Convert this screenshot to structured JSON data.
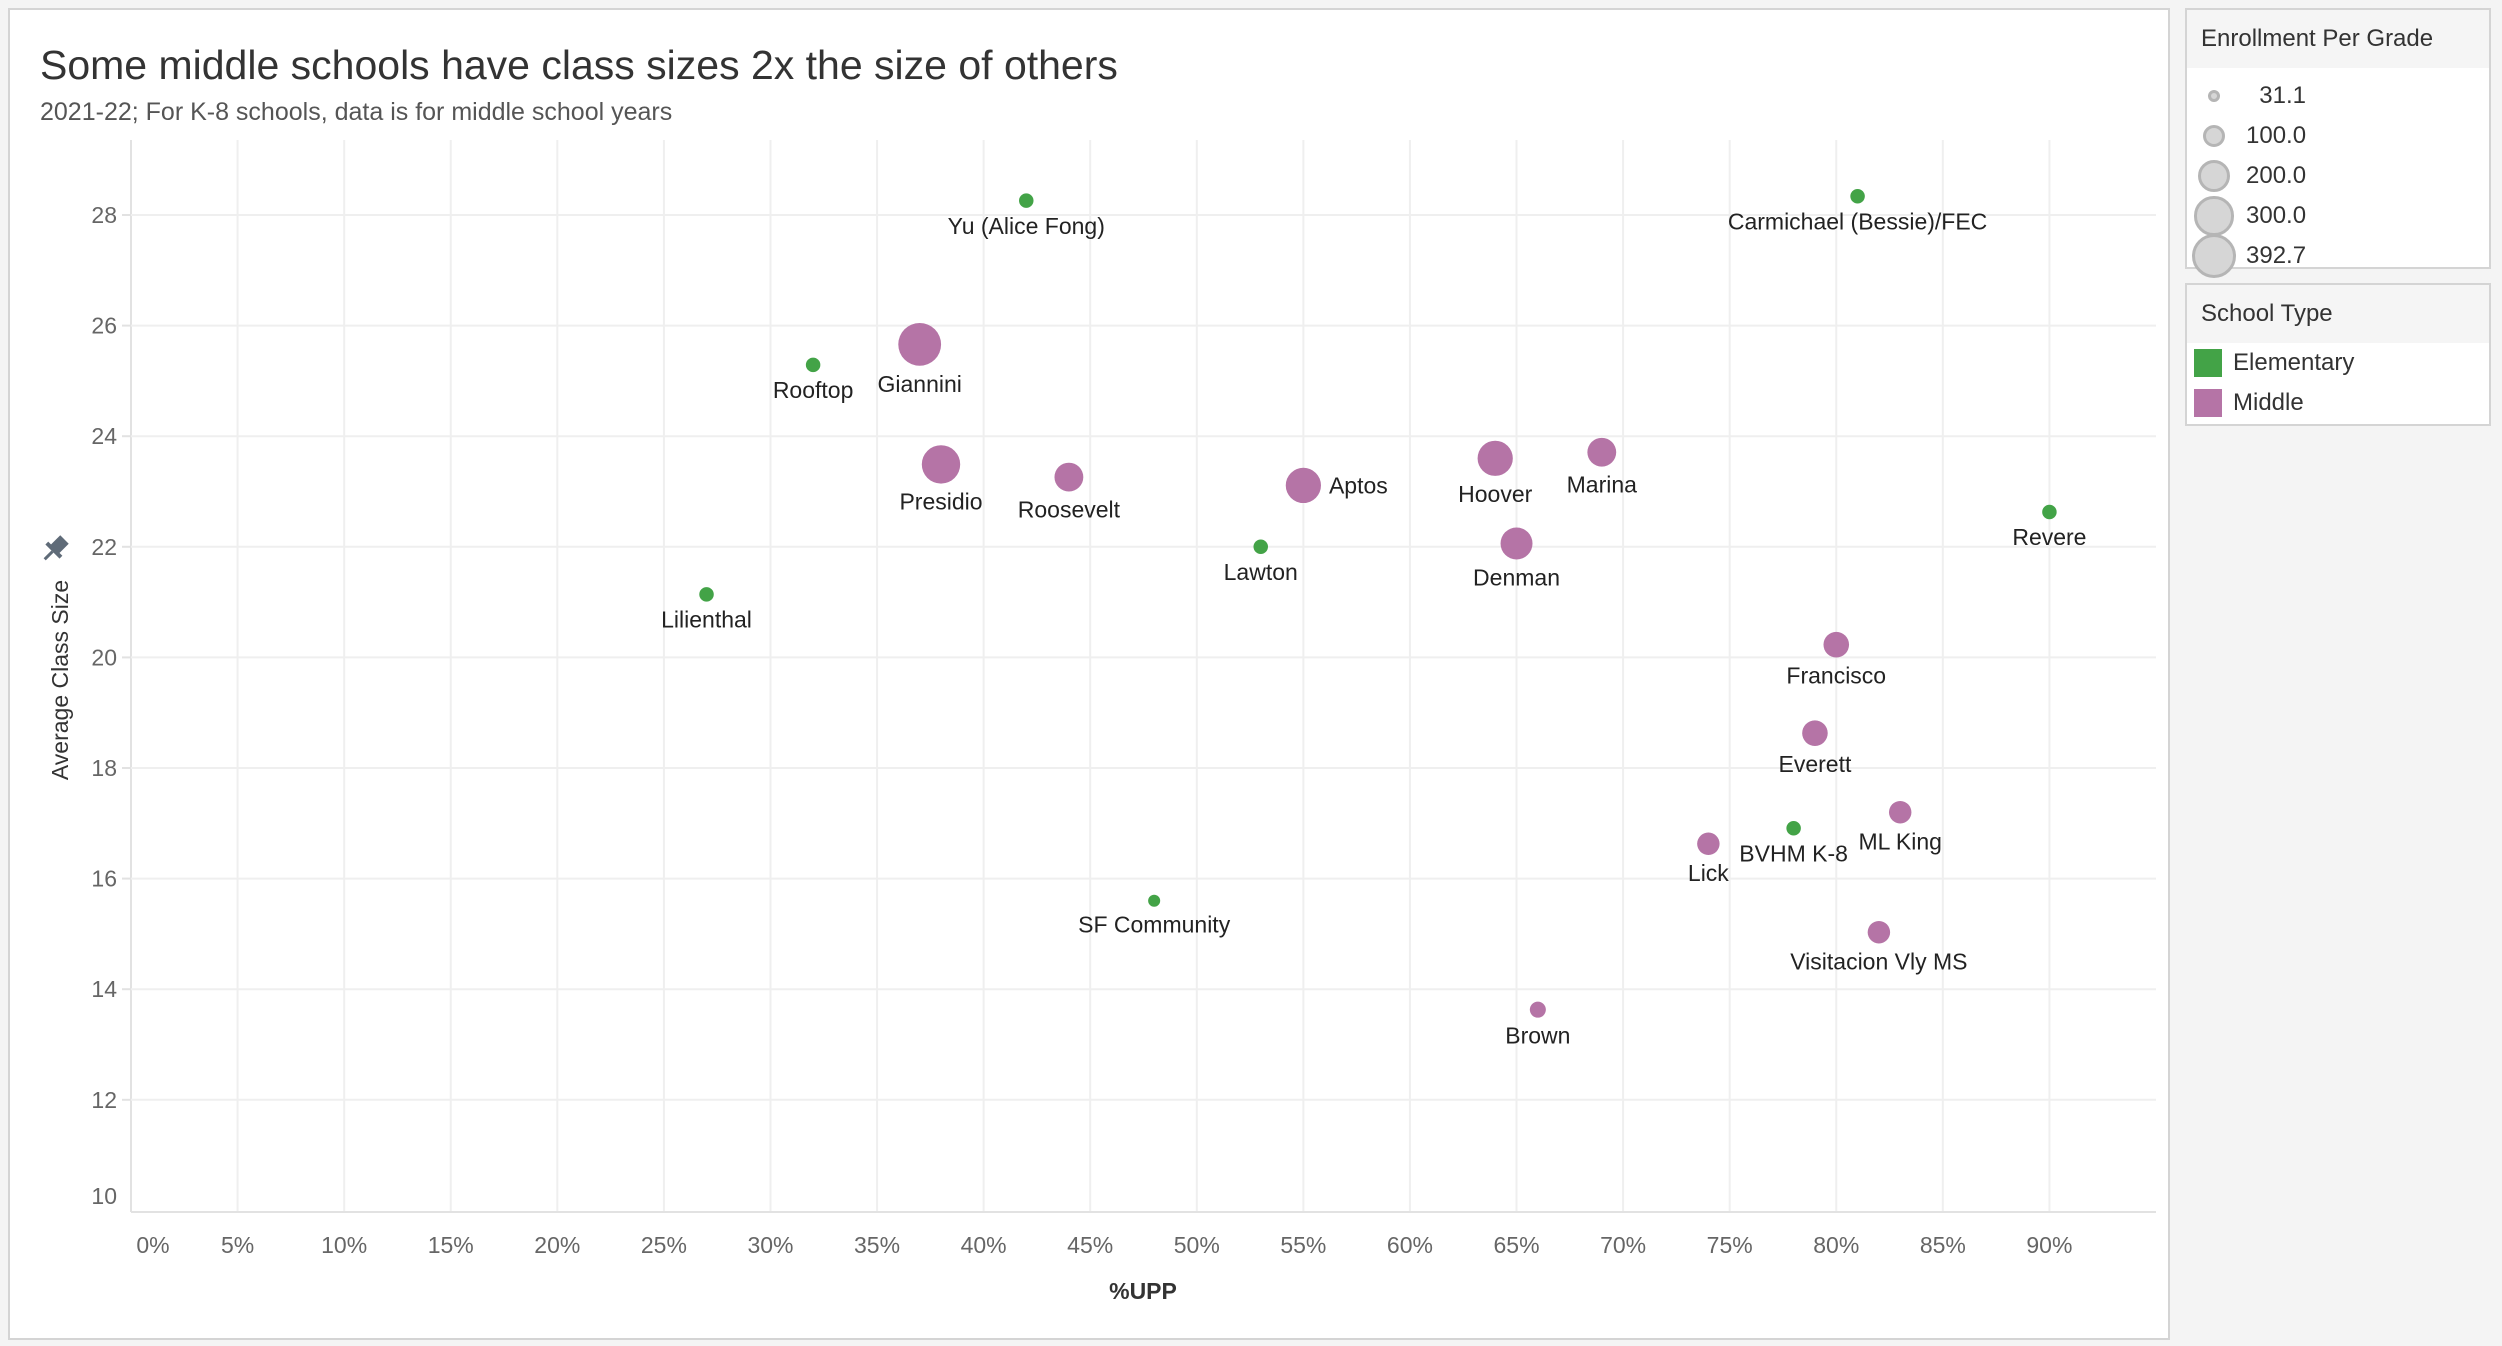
{
  "header": {
    "title": "Some middle schools have class sizes 2x the size of others",
    "subtitle": "2021-22; For K-8 schools, data is for middle school years"
  },
  "legends": {
    "size": {
      "title": "Enrollment Per Grade",
      "items": [
        "31.1",
        "100.0",
        "200.0",
        "300.0",
        "392.7"
      ],
      "values": [
        31.1,
        100,
        200,
        300,
        392.7
      ]
    },
    "color": {
      "title": "School Type",
      "items": [
        {
          "label": "Elementary",
          "color": "#43a347"
        },
        {
          "label": "Middle",
          "color": "#b574a6"
        }
      ]
    }
  },
  "chart_data": {
    "type": "scatter",
    "title": "Some middle schools have class sizes 2x the size of others",
    "subtitle": "2021-22; For K-8 schools, data is for middle school years",
    "xlabel": "%UPP",
    "ylabel": "Average Class Size",
    "xlim": [
      0,
      95
    ],
    "ylim": [
      10,
      29.4
    ],
    "xticks": [
      0,
      5,
      10,
      15,
      20,
      25,
      30,
      35,
      40,
      45,
      50,
      55,
      60,
      65,
      70,
      75,
      80,
      85,
      90
    ],
    "xtick_labels": [
      "0%",
      "5%",
      "10%",
      "15%",
      "20%",
      "25%",
      "30%",
      "35%",
      "40%",
      "45%",
      "50%",
      "55%",
      "60%",
      "65%",
      "70%",
      "75%",
      "80%",
      "85%",
      "90%"
    ],
    "yticks": [
      10,
      12,
      14,
      16,
      18,
      20,
      22,
      24,
      26,
      28
    ],
    "ytick_labels": [
      "10",
      "12",
      "14",
      "16",
      "18",
      "20",
      "22",
      "24",
      "26",
      "28"
    ],
    "grid": true,
    "size_field": "Enrollment Per Grade",
    "color_field": "School Type",
    "points": [
      {
        "name": "Yu (Alice Fong)",
        "x": 42,
        "y": 28.26,
        "type": "Elementary",
        "size": 45
      },
      {
        "name": "Carmichael (Bessie)/FEC",
        "x": 81,
        "y": 28.34,
        "type": "Elementary",
        "size": 45
      },
      {
        "name": "Rooftop",
        "x": 32,
        "y": 25.29,
        "type": "Elementary",
        "size": 45
      },
      {
        "name": "Giannini",
        "x": 37,
        "y": 25.66,
        "type": "Middle",
        "size": 392.7
      },
      {
        "name": "Presidio",
        "x": 38,
        "y": 23.49,
        "type": "Middle",
        "size": 316
      },
      {
        "name": "Roosevelt",
        "x": 44,
        "y": 23.26,
        "type": "Middle",
        "size": 178
      },
      {
        "name": "Aptos",
        "x": 55,
        "y": 23.11,
        "type": "Middle",
        "size": 266
      },
      {
        "name": "Hoover",
        "x": 64,
        "y": 23.6,
        "type": "Middle",
        "size": 266
      },
      {
        "name": "Marina",
        "x": 69,
        "y": 23.71,
        "type": "Middle",
        "size": 178
      },
      {
        "name": "Denman",
        "x": 65,
        "y": 22.06,
        "type": "Middle",
        "size": 219
      },
      {
        "name": "Lawton",
        "x": 53,
        "y": 22.0,
        "type": "Elementary",
        "size": 45
      },
      {
        "name": "Revere",
        "x": 90,
        "y": 22.63,
        "type": "Elementary",
        "size": 45
      },
      {
        "name": "Lilienthal",
        "x": 27,
        "y": 21.14,
        "type": "Elementary",
        "size": 45
      },
      {
        "name": "Francisco",
        "x": 80,
        "y": 20.23,
        "type": "Middle",
        "size": 140
      },
      {
        "name": "Everett",
        "x": 79,
        "y": 18.63,
        "type": "Middle",
        "size": 140
      },
      {
        "name": "ML King",
        "x": 83,
        "y": 17.2,
        "type": "Middle",
        "size": 108
      },
      {
        "name": "BVHM K-8",
        "x": 78,
        "y": 16.91,
        "type": "Elementary",
        "size": 45
      },
      {
        "name": "Lick",
        "x": 74,
        "y": 16.63,
        "type": "Middle",
        "size": 108
      },
      {
        "name": "SF Community",
        "x": 48,
        "y": 15.6,
        "type": "Elementary",
        "size": 31.1
      },
      {
        "name": "Visitacion Vly MS",
        "x": 82,
        "y": 15.03,
        "type": "Middle",
        "size": 108
      },
      {
        "name": "Brown",
        "x": 66,
        "y": 13.63,
        "type": "Middle",
        "size": 55
      }
    ]
  }
}
